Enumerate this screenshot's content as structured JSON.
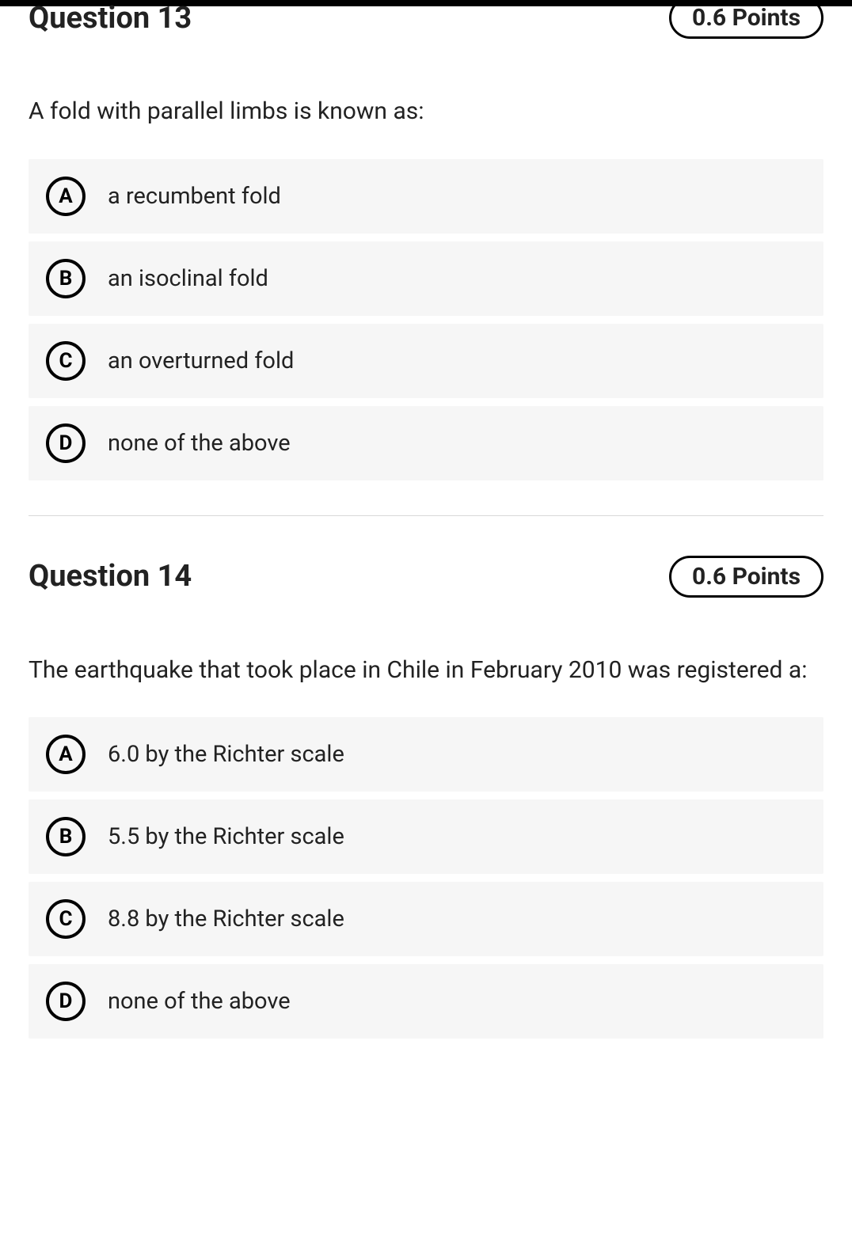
{
  "colors": {
    "topbar": "#000000",
    "background": "#ffffff",
    "option_bg": "#f6f6f6",
    "text": "#1a1a1a",
    "divider": "#d8d8d8"
  },
  "questions": [
    {
      "title": "Question 13",
      "points": "0.6 Points",
      "prompt": "A fold with parallel limbs is known as:",
      "options": [
        {
          "letter": "A",
          "text": "a recumbent fold"
        },
        {
          "letter": "B",
          "text": "an isoclinal fold"
        },
        {
          "letter": "C",
          "text": "an overturned fold"
        },
        {
          "letter": "D",
          "text": "none of the above"
        }
      ]
    },
    {
      "title": "Question 14",
      "points": "0.6 Points",
      "prompt": "The earthquake that took place in Chile in February 2010 was registered a:",
      "options": [
        {
          "letter": "A",
          "text": "6.0 by the Richter scale"
        },
        {
          "letter": "B",
          "text": "5.5 by the Richter scale"
        },
        {
          "letter": "C",
          "text": "8.8 by the Richter scale"
        },
        {
          "letter": "D",
          "text": "none of the above"
        }
      ]
    }
  ]
}
